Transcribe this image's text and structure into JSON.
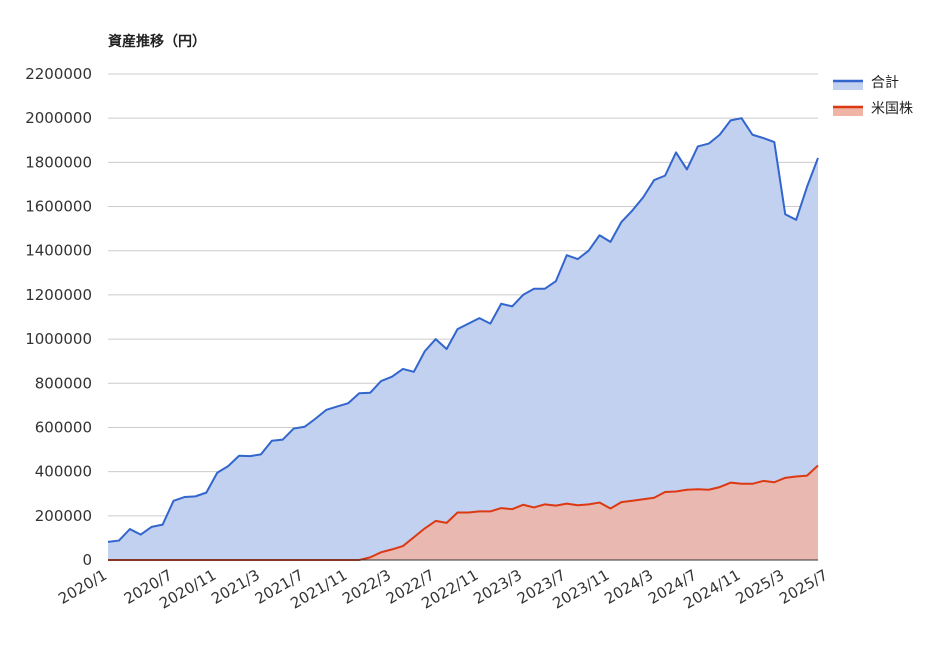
{
  "chart_data": {
    "type": "area",
    "title": "資産推移（円）",
    "xlabel": "",
    "ylabel": "",
    "ylim": [
      0,
      2200000
    ],
    "yticks": [
      0,
      200000,
      400000,
      600000,
      800000,
      1000000,
      1200000,
      1400000,
      1600000,
      1800000,
      2000000,
      2200000
    ],
    "x_tick_labels": [
      "2020/1",
      "2020/7",
      "2020/11",
      "2021/3",
      "2021/7",
      "2021/11",
      "2022/3",
      "2022/7",
      "2022/11",
      "2023/3",
      "2023/7",
      "2023/11",
      "2024/3",
      "2024/7",
      "2024/11",
      "2025/3",
      "2025/7"
    ],
    "grid": true,
    "legend_position": "right",
    "x_start": "2020/1",
    "x_end": "2025/7",
    "series": [
      {
        "name": "合計",
        "color": "#3366cc",
        "fill": "#c2d1f0",
        "values": [
          82000,
          88000,
          140000,
          115000,
          150000,
          160000,
          268000,
          285000,
          288000,
          305000,
          395000,
          425000,
          472000,
          470000,
          478000,
          540000,
          545000,
          595000,
          603000,
          640000,
          680000,
          695000,
          710000,
          755000,
          757000,
          810000,
          830000,
          865000,
          852000,
          945000,
          1000000,
          955000,
          1045000,
          1070000,
          1095000,
          1070000,
          1160000,
          1148000,
          1200000,
          1228000,
          1228000,
          1262000,
          1380000,
          1362000,
          1400000,
          1470000,
          1440000,
          1530000,
          1582000,
          1642000,
          1720000,
          1740000,
          1845000,
          1768000,
          1872000,
          1885000,
          1925000,
          1990000,
          2000000,
          1925000,
          1910000,
          1892000,
          1565000,
          1540000,
          1690000,
          1820000
        ]
      },
      {
        "name": "米国株",
        "color": "#dc3912",
        "fill": "#f0b4a6",
        "values": [
          0,
          0,
          0,
          0,
          0,
          0,
          0,
          0,
          0,
          0,
          0,
          0,
          0,
          0,
          0,
          0,
          0,
          0,
          0,
          0,
          0,
          0,
          0,
          0,
          12000,
          35000,
          48000,
          63000,
          103000,
          143000,
          177000,
          168000,
          215000,
          215000,
          220000,
          220000,
          235000,
          230000,
          250000,
          238000,
          252000,
          246000,
          255000,
          248000,
          252000,
          260000,
          233000,
          262000,
          268000,
          275000,
          282000,
          308000,
          310000,
          318000,
          320000,
          318000,
          330000,
          350000,
          345000,
          345000,
          358000,
          352000,
          372000,
          378000,
          382000,
          428000
        ]
      }
    ]
  }
}
